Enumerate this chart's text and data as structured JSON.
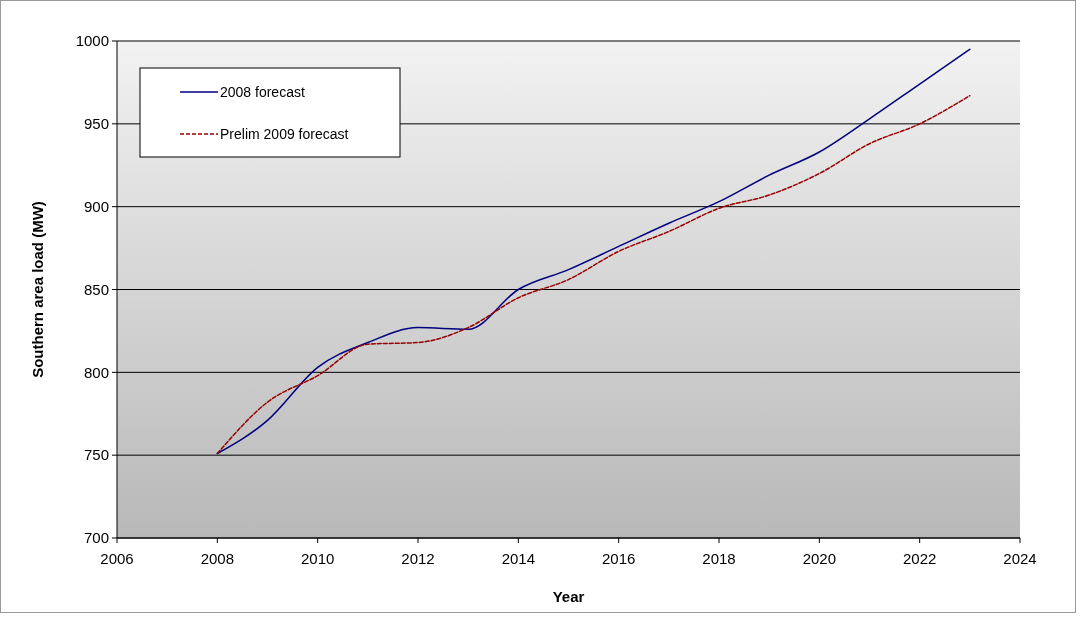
{
  "chart_data": {
    "type": "line",
    "xlabel": "Year",
    "ylabel": "Southern area load (MW)",
    "x": [
      2008,
      2009,
      2010,
      2011,
      2012,
      2013,
      2014,
      2015,
      2016,
      2017,
      2018,
      2019,
      2020,
      2021,
      2022,
      2023
    ],
    "series": [
      {
        "name": "2008 forecast",
        "color": "#000080",
        "line_style": "solid",
        "values": [
          751,
          771,
          803,
          818,
          827,
          826,
          850,
          862,
          876,
          890,
          903,
          919,
          933,
          953,
          974,
          995
        ]
      },
      {
        "name": "Prelim 2009 forecast",
        "color": "#990000",
        "line_style": "dashed",
        "values": [
          751,
          782,
          798,
          817,
          818,
          827,
          845,
          856,
          873,
          885,
          899,
          907,
          920,
          938,
          950,
          967
        ]
      }
    ],
    "xlim": [
      2006,
      2024
    ],
    "xticks": [
      2006,
      2008,
      2010,
      2012,
      2014,
      2016,
      2018,
      2020,
      2022,
      2024
    ],
    "ylim": [
      700,
      1000
    ],
    "yticks": [
      700,
      750,
      800,
      850,
      900,
      950,
      1000
    ],
    "grid": "y",
    "legend": "top left",
    "marker": "none"
  }
}
